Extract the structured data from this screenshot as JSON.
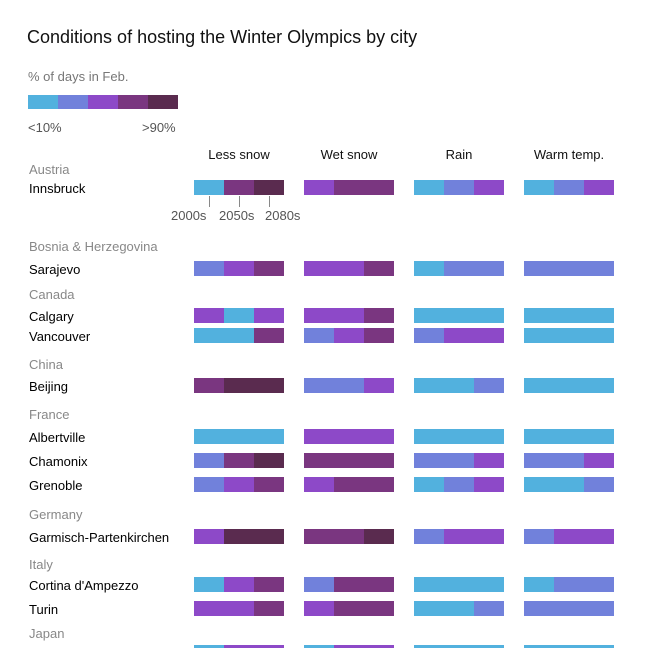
{
  "title": "Conditions of hosting the Winter Olympics by city",
  "legend": {
    "title": "% of days in Feb.",
    "low": "<10%",
    "high": ">90%",
    "colors": [
      "#52b1de",
      "#7181db",
      "#8d49c8",
      "#7a3680",
      "#5a2b4f"
    ]
  },
  "columns": [
    "Less snow",
    "Wet snow",
    "Rain",
    "Warm temp."
  ],
  "decades": [
    "2000s",
    "2050s",
    "2080s"
  ],
  "chart_data": {
    "type": "heatmap",
    "scale_levels": [
      "<10%",
      "",
      "",
      "",
      ">90%"
    ],
    "value_note": "values are color-level indices 0-4 for 2000s, 2050s, 2080s",
    "groups": [
      {
        "country": "Austria",
        "cities": [
          {
            "name": "Innsbruck",
            "values": [
              [
                0,
                3,
                4
              ],
              [
                2,
                3,
                3
              ],
              [
                0,
                1,
                2
              ],
              [
                0,
                1,
                2
              ]
            ]
          }
        ]
      },
      {
        "country": "Bosnia & Herzegovina",
        "cities": [
          {
            "name": "Sarajevo",
            "values": [
              [
                1,
                2,
                3
              ],
              [
                2,
                2,
                3
              ],
              [
                0,
                1,
                1
              ],
              [
                1,
                1,
                1
              ]
            ]
          }
        ]
      },
      {
        "country": "Canada",
        "cities": [
          {
            "name": "Calgary",
            "values": [
              [
                2,
                0,
                2
              ],
              [
                2,
                2,
                3
              ],
              [
                0,
                0,
                0
              ],
              [
                0,
                0,
                0
              ]
            ]
          },
          {
            "name": "Vancouver",
            "values": [
              [
                0,
                0,
                3
              ],
              [
                1,
                2,
                3
              ],
              [
                1,
                2,
                2
              ],
              [
                0,
                0,
                0
              ]
            ]
          }
        ]
      },
      {
        "country": "China",
        "cities": [
          {
            "name": "Beijing",
            "values": [
              [
                3,
                4,
                4
              ],
              [
                1,
                1,
                2
              ],
              [
                0,
                0,
                1
              ],
              [
                0,
                0,
                0
              ]
            ]
          }
        ]
      },
      {
        "country": "France",
        "cities": [
          {
            "name": "Albertville",
            "values": [
              [
                0,
                0,
                0
              ],
              [
                2,
                2,
                2
              ],
              [
                0,
                0,
                0
              ],
              [
                0,
                0,
                0
              ]
            ]
          },
          {
            "name": "Chamonix",
            "values": [
              [
                1,
                3,
                4
              ],
              [
                3,
                3,
                3
              ],
              [
                1,
                1,
                2
              ],
              [
                1,
                1,
                2
              ]
            ]
          },
          {
            "name": "Grenoble",
            "values": [
              [
                1,
                2,
                3
              ],
              [
                2,
                3,
                3
              ],
              [
                0,
                1,
                2
              ],
              [
                0,
                0,
                1
              ]
            ]
          }
        ]
      },
      {
        "country": "Germany",
        "cities": [
          {
            "name": "Garmisch-Partenkirchen",
            "values": [
              [
                2,
                4,
                4
              ],
              [
                3,
                3,
                4
              ],
              [
                1,
                2,
                2
              ],
              [
                1,
                2,
                2
              ]
            ]
          }
        ]
      },
      {
        "country": "Italy",
        "cities": [
          {
            "name": "Cortina d'Ampezzo",
            "values": [
              [
                0,
                2,
                3
              ],
              [
                1,
                3,
                3
              ],
              [
                0,
                0,
                0
              ],
              [
                0,
                1,
                1
              ]
            ]
          },
          {
            "name": "Turin",
            "values": [
              [
                2,
                2,
                3
              ],
              [
                2,
                3,
                3
              ],
              [
                0,
                0,
                1
              ],
              [
                1,
                1,
                1
              ]
            ]
          }
        ]
      },
      {
        "country": "Japan",
        "cities": []
      }
    ]
  }
}
